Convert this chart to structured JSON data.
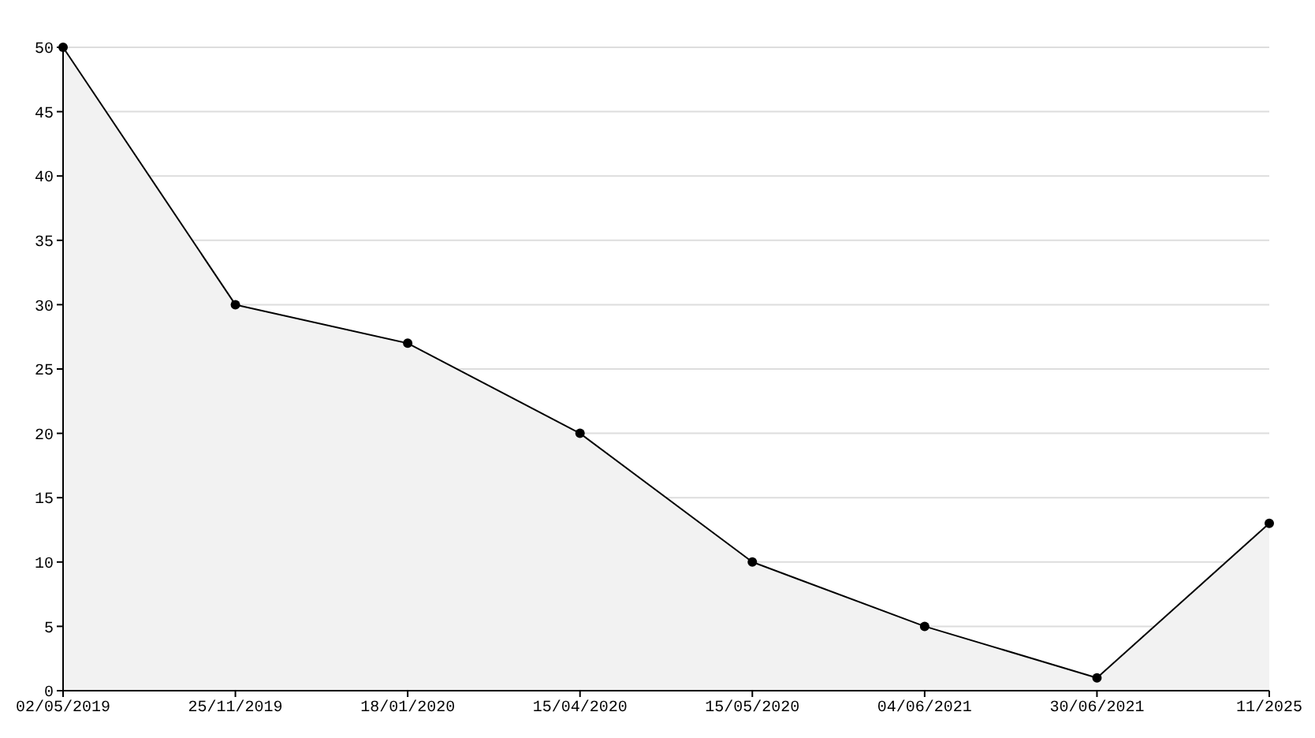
{
  "chart_data": {
    "type": "area",
    "categories": [
      "02/05/2019",
      "25/11/2019",
      "18/01/2020",
      "15/04/2020",
      "15/05/2020",
      "04/06/2021",
      "30/06/2021",
      "11/2025"
    ],
    "values": [
      50,
      30,
      27,
      20,
      10,
      5,
      1,
      13
    ],
    "color": "#000000",
    "ylim": [
      0,
      50
    ],
    "yticks": [
      0,
      5,
      10,
      15,
      20,
      25,
      30,
      35,
      40,
      45,
      50
    ],
    "grid": "y",
    "marker": "circle",
    "line_style": "solid"
  }
}
